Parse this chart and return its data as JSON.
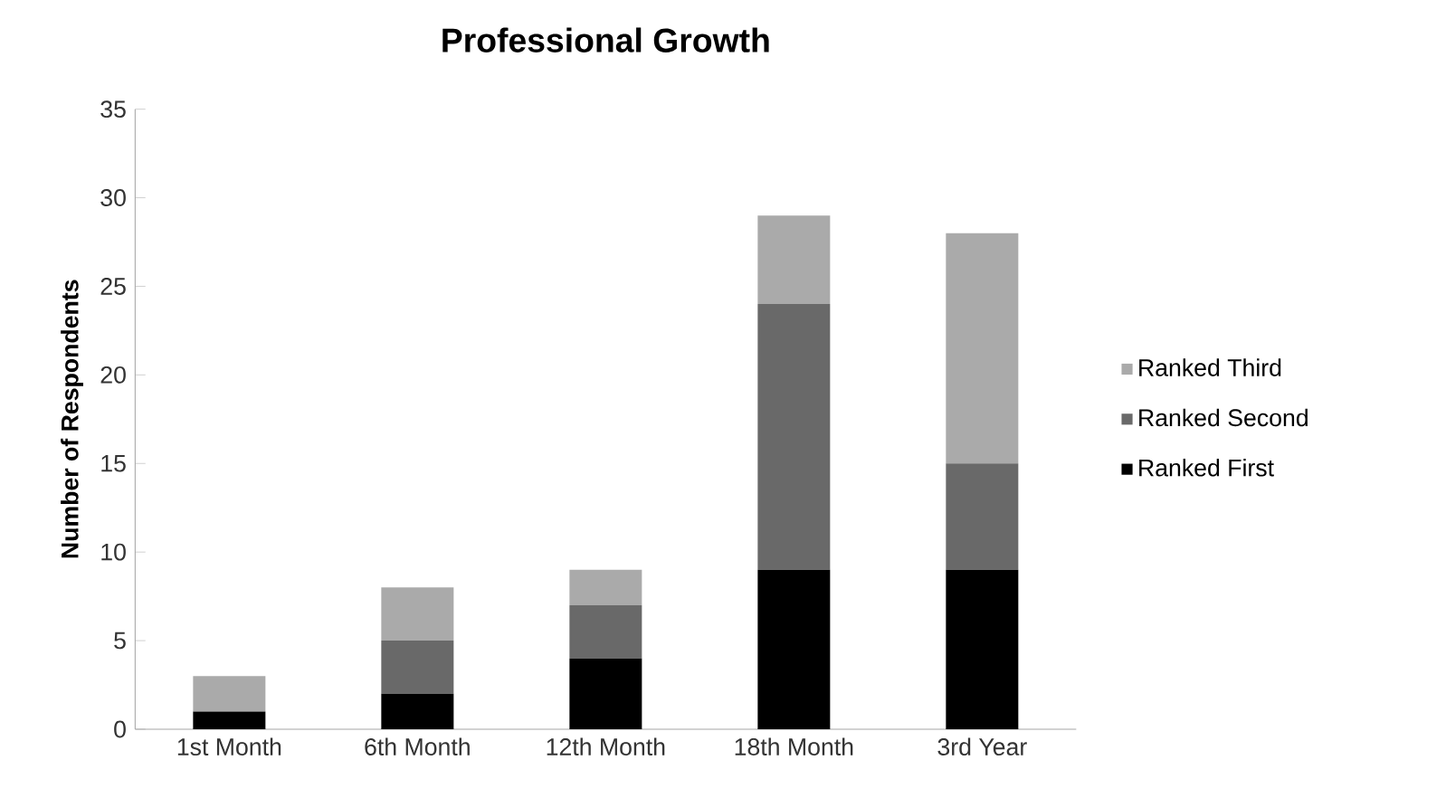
{
  "chart_data": {
    "type": "bar",
    "title": "Professional Growth",
    "ylabel": "Number of Respondents",
    "categories": [
      "1st Month",
      "6th Month",
      "12th Month",
      "18th Month",
      "3rd Year"
    ],
    "stacked": true,
    "series": [
      {
        "name": "Ranked First",
        "color": "#000000",
        "values": [
          1,
          2,
          4,
          9,
          9
        ]
      },
      {
        "name": "Ranked Second",
        "color": "#696969",
        "values": [
          0,
          3,
          3,
          15,
          6
        ]
      },
      {
        "name": "Ranked Third",
        "color": "#aaaaaa",
        "values": [
          2,
          3,
          2,
          5,
          13
        ]
      }
    ],
    "ylim": [
      0,
      35
    ],
    "yticks": [
      0,
      5,
      10,
      15,
      20,
      25,
      30,
      35
    ],
    "grid": false,
    "legend": "right"
  }
}
